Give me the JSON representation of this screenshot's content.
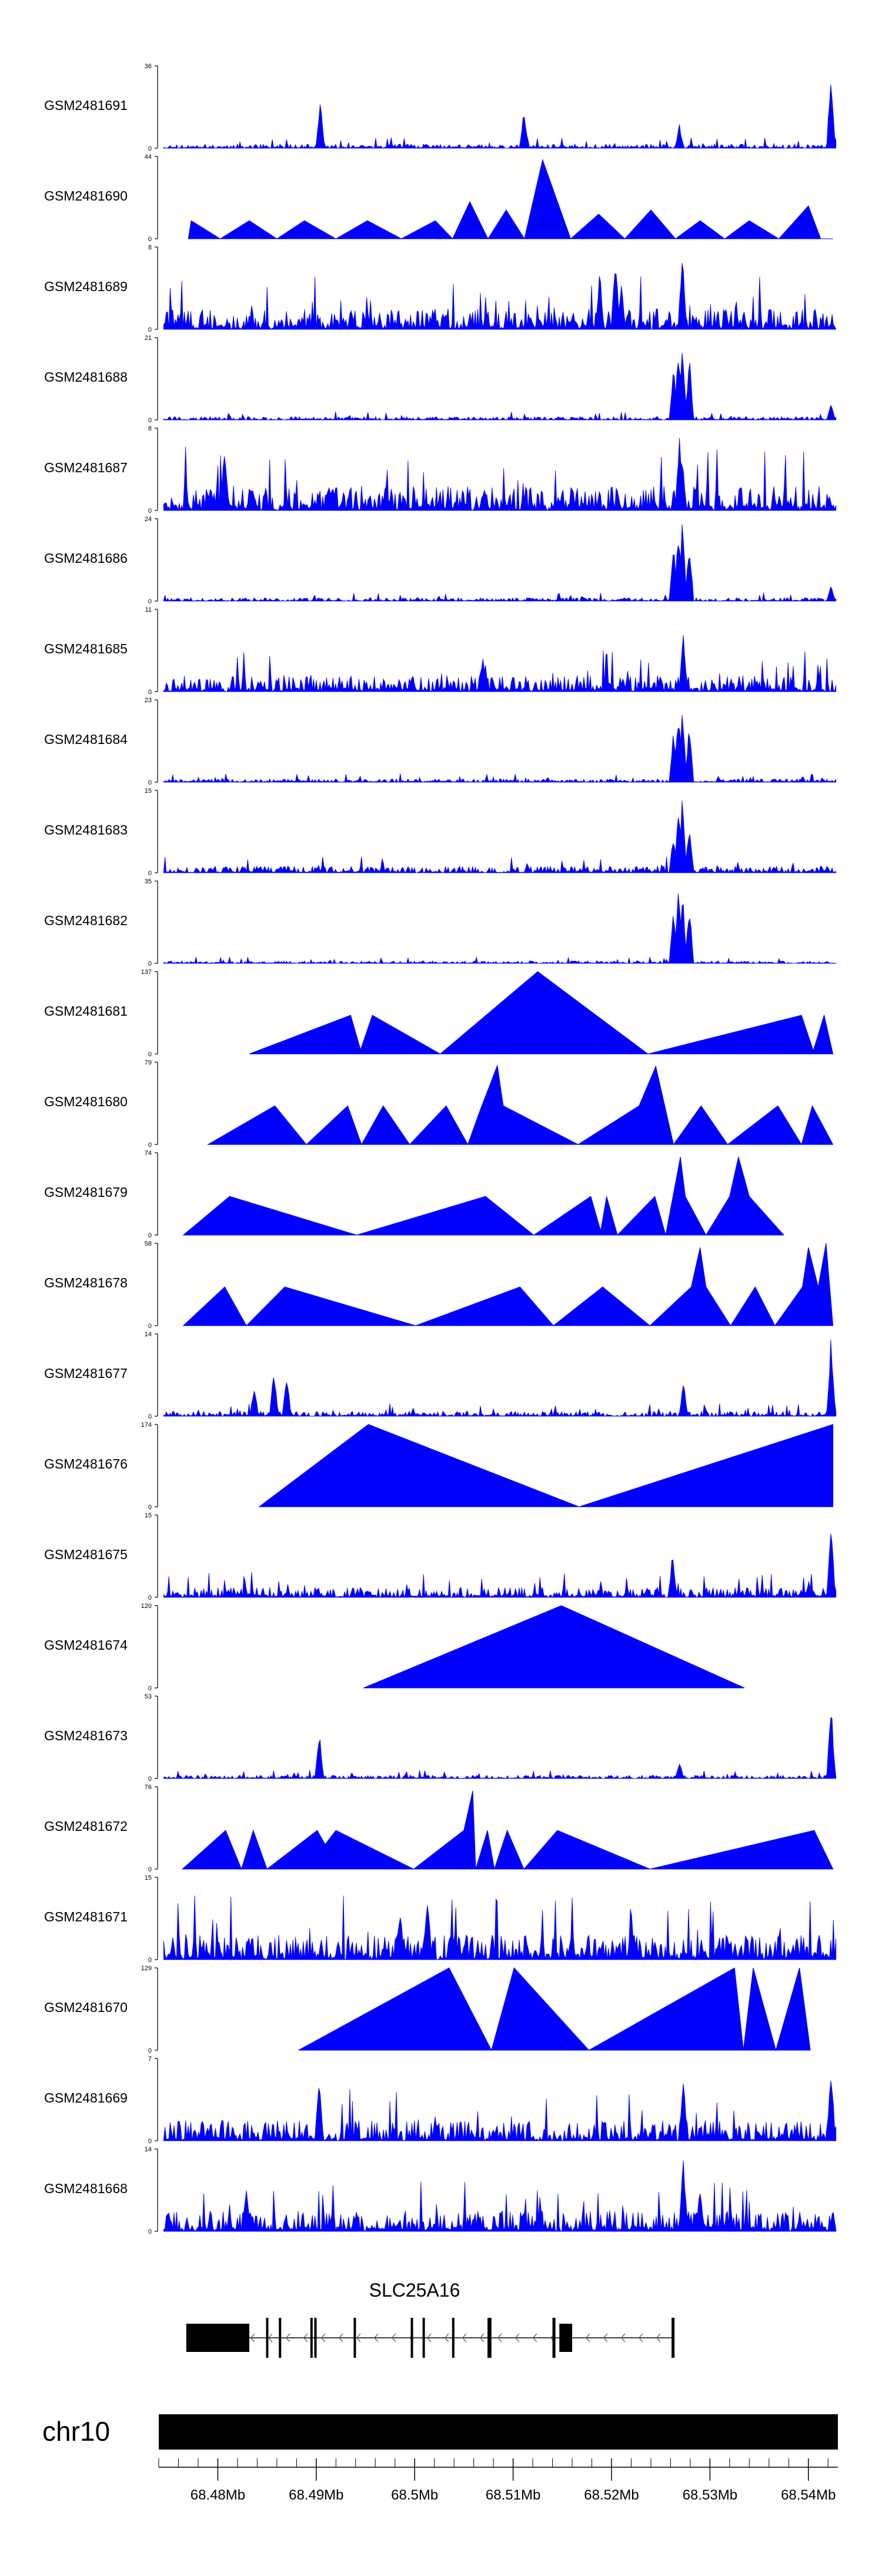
{
  "chart_data": {
    "type": "area",
    "title": "",
    "chromosome": "chr10",
    "gene": "SLC25A16",
    "xlim": [
      68.474,
      68.543
    ],
    "x_tick_labels": [
      "68.48Mb",
      "68.49Mb",
      "68.5Mb",
      "68.51Mb",
      "68.52Mb",
      "68.53Mb",
      "68.54Mb"
    ],
    "x_ticks": [
      68.48,
      68.49,
      68.5,
      68.51,
      68.52,
      68.53,
      68.54
    ],
    "tracks": [
      {
        "name": "GSM2481691",
        "ymax": 36,
        "ymin": 0,
        "style": "dense",
        "seed": 11,
        "base": 0.05,
        "spikes": [
          [
            68.4904,
            0.6
          ],
          [
            68.5111,
            0.5
          ],
          [
            68.5269,
            0.3
          ],
          [
            68.5423,
            1.0
          ]
        ]
      },
      {
        "name": "GSM2481690",
        "ymax": 44,
        "ymin": 0,
        "style": "triangles",
        "peaks": [
          [
            68.4773,
            0.22
          ],
          [
            68.4832,
            0.22
          ],
          [
            68.4888,
            0.22
          ],
          [
            68.4952,
            0.22
          ],
          [
            68.5021,
            0.22
          ],
          [
            68.5056,
            0.45
          ],
          [
            68.5093,
            0.35
          ],
          [
            68.513,
            0.96
          ],
          [
            68.5187,
            0.3
          ],
          [
            68.524,
            0.35
          ],
          [
            68.529,
            0.22
          ],
          [
            68.534,
            0.22
          ],
          [
            68.54,
            0.4
          ]
        ],
        "start": 68.477,
        "end": 68.5425
      },
      {
        "name": "GSM2481689",
        "ymax": 8,
        "ymin": 0,
        "style": "dense",
        "seed": 22,
        "base": 0.25,
        "spikes": [
          [
            68.5188,
            0.75
          ],
          [
            68.5204,
            0.95
          ],
          [
            68.5272,
            1.0
          ],
          [
            68.521,
            0.6
          ]
        ]
      },
      {
        "name": "GSM2481688",
        "ymax": 21,
        "ymin": 0,
        "style": "dense",
        "seed": 33,
        "base": 0.04,
        "spikes": [
          [
            68.5263,
            0.7
          ],
          [
            68.5268,
            0.9
          ],
          [
            68.5272,
            1.0
          ],
          [
            68.5279,
            0.8
          ],
          [
            68.5423,
            0.2
          ]
        ]
      },
      {
        "name": "GSM2481687",
        "ymax": 8,
        "ymin": 0,
        "style": "dense",
        "seed": 44,
        "base": 0.3,
        "spikes": [
          [
            68.4807,
            0.85
          ],
          [
            68.5269,
            0.9
          ],
          [
            68.5272,
            0.7
          ]
        ]
      },
      {
        "name": "GSM2481686",
        "ymax": 24,
        "ymin": 0,
        "style": "dense",
        "seed": 55,
        "base": 0.04,
        "spikes": [
          [
            68.5263,
            0.7
          ],
          [
            68.5268,
            0.9
          ],
          [
            68.5272,
            1.0
          ],
          [
            68.5279,
            0.8
          ],
          [
            68.5423,
            0.2
          ]
        ]
      },
      {
        "name": "GSM2481685",
        "ymax": 11,
        "ymin": 0,
        "style": "dense",
        "seed": 66,
        "base": 0.2,
        "spikes": [
          [
            68.5273,
            0.75
          ],
          [
            68.5069,
            0.45
          ]
        ]
      },
      {
        "name": "GSM2481684",
        "ymax": 23,
        "ymin": 0,
        "style": "dense",
        "seed": 77,
        "base": 0.04,
        "spikes": [
          [
            68.5263,
            0.7
          ],
          [
            68.5268,
            0.9
          ],
          [
            68.5272,
            1.0
          ],
          [
            68.5279,
            0.8
          ]
        ]
      },
      {
        "name": "GSM2481683",
        "ymax": 15,
        "ymin": 0,
        "style": "dense",
        "seed": 88,
        "base": 0.08,
        "spikes": [
          [
            68.5263,
            0.5
          ],
          [
            68.5268,
            0.8
          ],
          [
            68.5272,
            1.0
          ],
          [
            68.5279,
            0.6
          ]
        ]
      },
      {
        "name": "GSM2481682",
        "ymax": 35,
        "ymin": 0,
        "style": "dense",
        "seed": 99,
        "base": 0.03,
        "spikes": [
          [
            68.5263,
            0.7
          ],
          [
            68.5268,
            0.9
          ],
          [
            68.5272,
            1.0
          ],
          [
            68.5279,
            0.8
          ]
        ]
      },
      {
        "name": "GSM2481681",
        "ymax": 137,
        "ymin": 0,
        "style": "triangles",
        "peaks": [
          [
            68.4913,
            0.47
          ],
          [
            68.495,
            0.5
          ],
          [
            68.5081,
            1.0
          ],
          [
            68.5406,
            0.47
          ]
        ],
        "start": 68.4832,
        "end": 68.5425,
        "points": [
          [
            68.4832,
            0
          ],
          [
            68.4935,
            0.47
          ],
          [
            68.4945,
            0.05
          ],
          [
            68.4957,
            0.47
          ],
          [
            68.5026,
            0
          ],
          [
            68.5125,
            1.0
          ],
          [
            68.5237,
            0
          ],
          [
            68.5393,
            0.47
          ],
          [
            68.5405,
            0.04
          ],
          [
            68.5416,
            0.47
          ],
          [
            68.5425,
            0
          ]
        ]
      },
      {
        "name": "GSM2481680",
        "ymax": 79,
        "ymin": 0,
        "style": "triangles",
        "start": 68.479,
        "end": 68.5425,
        "points": [
          [
            68.479,
            0
          ],
          [
            68.4858,
            0.47
          ],
          [
            68.489,
            0
          ],
          [
            68.4932,
            0.47
          ],
          [
            68.4946,
            0
          ],
          [
            68.4968,
            0.47
          ],
          [
            68.4995,
            0
          ],
          [
            68.5032,
            0.47
          ],
          [
            68.5054,
            0
          ],
          [
            68.5066,
            0.4
          ],
          [
            68.5084,
            0.96
          ],
          [
            68.509,
            0.47
          ],
          [
            68.5166,
            0
          ],
          [
            68.5228,
            0.47
          ],
          [
            68.5245,
            0.95
          ],
          [
            68.5263,
            0
          ],
          [
            68.5291,
            0.47
          ],
          [
            68.5318,
            0
          ],
          [
            68.5369,
            0.47
          ],
          [
            68.5393,
            0
          ],
          [
            68.5404,
            0.47
          ],
          [
            68.5425,
            0
          ]
        ]
      },
      {
        "name": "GSM2481679",
        "ymax": 74,
        "ymin": 0,
        "style": "triangles",
        "start": 68.4765,
        "end": 68.5375,
        "points": [
          [
            68.4765,
            0
          ],
          [
            68.4812,
            0.47
          ],
          [
            68.4941,
            0
          ],
          [
            68.5072,
            0.47
          ],
          [
            68.5121,
            0
          ],
          [
            68.5179,
            0.47
          ],
          [
            68.5189,
            0.05
          ],
          [
            68.5195,
            0.47
          ],
          [
            68.5206,
            0
          ],
          [
            68.5244,
            0.47
          ],
          [
            68.5255,
            0
          ],
          [
            68.527,
            0.95
          ],
          [
            68.5275,
            0.47
          ],
          [
            68.5296,
            0
          ],
          [
            68.532,
            0.47
          ],
          [
            68.5329,
            0.95
          ],
          [
            68.534,
            0.47
          ],
          [
            68.5375,
            0
          ]
        ]
      },
      {
        "name": "GSM2481678",
        "ymax": 58,
        "ymin": 0,
        "style": "triangles",
        "start": 68.4765,
        "end": 68.5425,
        "points": [
          [
            68.4765,
            0
          ],
          [
            68.4807,
            0.47
          ],
          [
            68.4829,
            0
          ],
          [
            68.4868,
            0.47
          ],
          [
            68.5001,
            0
          ],
          [
            68.5107,
            0.47
          ],
          [
            68.5141,
            0
          ],
          [
            68.5191,
            0.47
          ],
          [
            68.5239,
            0
          ],
          [
            68.5281,
            0.47
          ],
          [
            68.529,
            0.95
          ],
          [
            68.5296,
            0.47
          ],
          [
            68.5321,
            0
          ],
          [
            68.5346,
            0.47
          ],
          [
            68.5366,
            0
          ],
          [
            68.5394,
            0.47
          ],
          [
            68.54,
            0.95
          ],
          [
            68.541,
            0.47
          ],
          [
            68.5418,
            1.0
          ],
          [
            68.5425,
            0
          ]
        ]
      },
      {
        "name": "GSM2481677",
        "ymax": 14,
        "ymin": 0,
        "style": "dense",
        "seed": 101,
        "base": 0.06,
        "spikes": [
          [
            68.4837,
            0.4
          ],
          [
            68.4857,
            0.6
          ],
          [
            68.487,
            0.55
          ],
          [
            68.5273,
            0.45
          ],
          [
            68.5423,
            1.0
          ]
        ]
      },
      {
        "name": "GSM2481676",
        "ymax": 174,
        "ymin": 0,
        "style": "triangles",
        "start": 68.4842,
        "end": 68.5425,
        "points": [
          [
            68.4842,
            0
          ],
          [
            68.4953,
            1.0
          ],
          [
            68.5167,
            0
          ],
          [
            68.5425,
            1.0
          ],
          [
            68.5425,
            0
          ]
        ]
      },
      {
        "name": "GSM2481675",
        "ymax": 15,
        "ymin": 0,
        "style": "dense",
        "seed": 121,
        "base": 0.12,
        "spikes": [
          [
            68.5262,
            0.55
          ],
          [
            68.5423,
            1.0
          ]
        ]
      },
      {
        "name": "GSM2481674",
        "ymax": 120,
        "ymin": 0,
        "style": "triangles",
        "start": 68.4948,
        "end": 68.5335,
        "points": [
          [
            68.4948,
            0
          ],
          [
            68.5149,
            1.0
          ],
          [
            68.5335,
            0
          ]
        ]
      },
      {
        "name": "GSM2481673",
        "ymax": 53,
        "ymin": 0,
        "style": "dense",
        "seed": 131,
        "base": 0.04,
        "spikes": [
          [
            68.4903,
            0.6
          ],
          [
            68.5269,
            0.22
          ],
          [
            68.5423,
            1.0
          ]
        ]
      },
      {
        "name": "GSM2481672",
        "ymax": 76,
        "ymin": 0,
        "style": "triangles",
        "start": 68.4764,
        "end": 68.5425,
        "points": [
          [
            68.4764,
            0
          ],
          [
            68.4808,
            0.47
          ],
          [
            68.4824,
            0
          ],
          [
            68.4836,
            0.47
          ],
          [
            68.485,
            0
          ],
          [
            68.4901,
            0.47
          ],
          [
            68.4909,
            0.3
          ],
          [
            68.492,
            0.47
          ],
          [
            68.4999,
            0
          ],
          [
            68.505,
            0.47
          ],
          [
            68.5059,
            0.95
          ],
          [
            68.5062,
            0
          ],
          [
            68.5074,
            0.47
          ],
          [
            68.5081,
            0
          ],
          [
            68.5094,
            0.47
          ],
          [
            68.5111,
            0
          ],
          [
            68.5145,
            0.47
          ],
          [
            68.5239,
            0
          ],
          [
            68.5406,
            0.47
          ],
          [
            68.5425,
            0
          ]
        ]
      },
      {
        "name": "GSM2481671",
        "ymax": 15,
        "ymin": 0,
        "style": "dense",
        "seed": 141,
        "base": 0.3,
        "spikes": [
          [
            68.4985,
            0.7
          ],
          [
            68.5013,
            0.85
          ]
        ]
      },
      {
        "name": "GSM2481670",
        "ymax": 129,
        "ymin": 0,
        "style": "triangles",
        "start": 68.4882,
        "end": 68.5402,
        "points": [
          [
            68.4882,
            0
          ],
          [
            68.5035,
            1.0
          ],
          [
            68.5078,
            0
          ],
          [
            68.5101,
            1.0
          ],
          [
            68.5177,
            0
          ],
          [
            68.5325,
            1.0
          ],
          [
            68.5334,
            0
          ],
          [
            68.5344,
            1.0
          ],
          [
            68.5367,
            0
          ],
          [
            68.5391,
            1.0
          ],
          [
            68.5402,
            0
          ]
        ]
      },
      {
        "name": "GSM2481669",
        "ymax": 7,
        "ymin": 0,
        "style": "dense",
        "seed": 151,
        "base": 0.25,
        "spikes": [
          [
            68.4903,
            0.8
          ],
          [
            68.5273,
            0.8
          ],
          [
            68.5423,
            1.0
          ]
        ]
      },
      {
        "name": "GSM2481668",
        "ymax": 14,
        "ymin": 0,
        "style": "dense",
        "seed": 161,
        "base": 0.25,
        "spikes": [
          [
            68.4829,
            0.6
          ],
          [
            68.5273,
            0.95
          ],
          [
            68.529,
            0.55
          ]
        ]
      }
    ],
    "gene_model": {
      "name": "SLC25A16",
      "strand": "-",
      "start": 68.4768,
      "end": 68.5264,
      "exons": [
        [
          68.4768,
          68.4832
        ],
        [
          68.4849,
          68.4851
        ],
        [
          68.4862,
          68.4864
        ],
        [
          68.4894,
          68.4896
        ],
        [
          68.4898,
          68.49
        ],
        [
          68.4938,
          68.494
        ],
        [
          68.4996,
          68.4998
        ],
        [
          68.5008,
          68.501
        ],
        [
          68.5038,
          68.504
        ],
        [
          68.5074,
          68.5078
        ],
        [
          68.514,
          68.5143
        ],
        [
          68.5147,
          68.516
        ],
        [
          68.5261,
          68.5264
        ]
      ]
    }
  }
}
